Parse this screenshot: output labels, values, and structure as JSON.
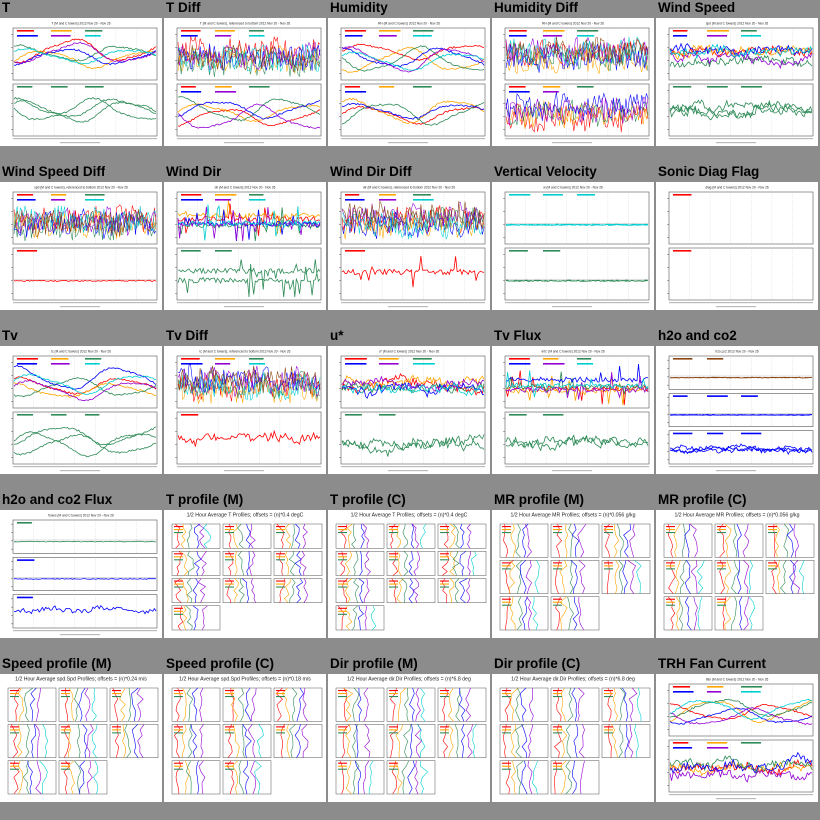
{
  "page": {
    "background": "#8c8c8c"
  },
  "series_colors": [
    "#ff0000",
    "#ffa500",
    "#2e8b57",
    "#0000ff",
    "#9400d3",
    "#00ced1",
    "#8b4513",
    "#7f7f00"
  ],
  "tiles": [
    {
      "title": "T",
      "kind": "ts",
      "head": "T (M and C towers) 2012 Nov 20 - Nov 26",
      "panels": [
        {
          "n": 6,
          "style": "smooth"
        },
        {
          "n": 3,
          "style": "smooth",
          "color": "#2e8b57"
        }
      ]
    },
    {
      "title": "T Diff",
      "kind": "ts",
      "head": "T (M and C towers), referenced to bottom 2012 Nov 20 - Nov 26",
      "panels": [
        {
          "n": 7,
          "style": "dense"
        },
        {
          "n": 5,
          "style": "smooth"
        }
      ]
    },
    {
      "title": "Humidity",
      "kind": "ts",
      "head": "RH (M and C towers) 2012 Nov 20 - Nov 26",
      "panels": [
        {
          "n": 6,
          "style": "smooth"
        },
        {
          "n": 4,
          "style": "smooth"
        }
      ]
    },
    {
      "title": "Humidity Diff",
      "kind": "ts",
      "head": "RH (M and C towers) 2012 Nov 20 - Nov 26",
      "panels": [
        {
          "n": 7,
          "style": "dense"
        },
        {
          "n": 5,
          "style": "dense"
        }
      ]
    },
    {
      "title": "Wind Speed",
      "kind": "ts",
      "head": "spd (M and C towers) 2012 Nov 20 - Nov 26",
      "panels": [
        {
          "n": 6,
          "style": "noisy"
        },
        {
          "n": 3,
          "style": "noisy",
          "color": "#2e8b57"
        }
      ]
    },
    {
      "title": "Wind Speed Diff",
      "kind": "ts",
      "head": "spd (M and C towers), referenced to bottom 2012 Nov 20 - Nov 26",
      "panels": [
        {
          "n": 7,
          "style": "dense"
        },
        {
          "n": 1,
          "style": "flat",
          "color": "#ff0000"
        }
      ]
    },
    {
      "title": "Wind Dir",
      "kind": "ts",
      "head": "dir (M and C towers) 2012 Nov 20 - Nov 26",
      "panels": [
        {
          "n": 6,
          "style": "spiky"
        },
        {
          "n": 2,
          "style": "spiky",
          "color": "#2e8b57"
        }
      ]
    },
    {
      "title": "Wind Dir Diff",
      "kind": "ts",
      "head": "dir (M and C towers), referenced to bottom 2012 Nov 20 - Nov 26",
      "panels": [
        {
          "n": 7,
          "style": "dense"
        },
        {
          "n": 1,
          "style": "spiky",
          "color": "#ff0000"
        }
      ]
    },
    {
      "title": "Vertical Velocity",
      "kind": "ts",
      "head": "w (M and C towers) 2012 Nov 20 - Nov 26",
      "panels": [
        {
          "n": 3,
          "style": "flat",
          "color": "#00ced1"
        },
        {
          "n": 2,
          "style": "flat",
          "color": "#2e8b57"
        }
      ]
    },
    {
      "title": "Sonic Diag Flag",
      "kind": "ts",
      "head": "diag (M and C towers) 2012 Nov 20 - Nov 26",
      "panels": [
        {
          "n": 0,
          "style": "flat"
        },
        {
          "n": 0,
          "style": "flat"
        }
      ]
    },
    {
      "title": "Tv",
      "kind": "ts",
      "head": "tc (M and C towers) 2012 Nov 20 - Nov 26",
      "panels": [
        {
          "n": 6,
          "style": "smooth"
        },
        {
          "n": 3,
          "style": "smooth",
          "color": "#2e8b57"
        }
      ]
    },
    {
      "title": "Tv Diff",
      "kind": "ts",
      "head": "tc (M and C towers), referenced to bottom 2012 Nov 20 - Nov 26",
      "panels": [
        {
          "n": 7,
          "style": "dense"
        },
        {
          "n": 1,
          "style": "noisy",
          "color": "#ff0000"
        }
      ]
    },
    {
      "title": "u*",
      "kind": "ts",
      "head": "u* (M and C towers) 2012 Nov 20 - Nov 26",
      "panels": [
        {
          "n": 6,
          "style": "noisy"
        },
        {
          "n": 2,
          "style": "noisy",
          "color": "#2e8b57"
        }
      ]
    },
    {
      "title": "Tv Flux",
      "kind": "ts",
      "head": "w'tc' (M and C towers) 2012 Nov 20 - Nov 26",
      "panels": [
        {
          "n": 6,
          "style": "spiky"
        },
        {
          "n": 2,
          "style": "noisy",
          "color": "#2e8b57"
        }
      ]
    },
    {
      "title": "h2o and co2",
      "kind": "ts3",
      "head": "h2o,co2 2012 Nov 20 - Nov 26",
      "panels": [
        {
          "n": 2,
          "style": "flat",
          "color": "#8b4513"
        },
        {
          "n": 3,
          "style": "flat",
          "color": "#0000ff"
        },
        {
          "n": 3,
          "style": "noisy",
          "color": "#0000ff"
        }
      ]
    },
    {
      "title": "h2o and co2 Flux",
      "kind": "ts3",
      "head": "fluxes (M and C towers) 2012 Nov 20 - Nov 26",
      "panels": [
        {
          "n": 1,
          "style": "flat",
          "color": "#2e8b57"
        },
        {
          "n": 1,
          "style": "flat",
          "color": "#0000ff"
        },
        {
          "n": 1,
          "style": "noisy",
          "color": "#0000ff"
        }
      ]
    },
    {
      "title": "T profile (M)",
      "kind": "prof",
      "head": "1/2 Hour Average T Profiles; offsets = (n)*0.4 degC",
      "rows": 4
    },
    {
      "title": "T profile (C)",
      "kind": "prof",
      "head": "1/2 Hour Average T Profiles; offsets = (n)*0.4 degC",
      "rows": 4
    },
    {
      "title": "MR profile (M)",
      "kind": "prof",
      "head": "1/2 Hour Average MR Profiles; offsets = (n)*0.056 g/kg",
      "rows": 3
    },
    {
      "title": "MR profile (C)",
      "kind": "prof",
      "head": "1/2 Hour Average MR Profiles; offsets = (n)*0.056 g/kg",
      "rows": 3
    },
    {
      "title": "Speed profile (M)",
      "kind": "prof",
      "head": "1/2 Hour Average spd.Spd Profiles; offsets = (n)*0.24 m/s",
      "rows": 3
    },
    {
      "title": "Speed profile (C)",
      "kind": "prof",
      "head": "1/2 Hour Average spd.Spd Profiles; offsets = (n)*0.18 m/s",
      "rows": 3
    },
    {
      "title": "Dir profile (M)",
      "kind": "prof",
      "head": "1/2 Hour Average dir.Dir Profiles; offsets = (n)*6.8 deg",
      "rows": 3
    },
    {
      "title": "Dir profile (C)",
      "kind": "prof",
      "head": "1/2 Hour Average dir.Dir Profiles; offsets = (n)*6.8 deg",
      "rows": 3
    },
    {
      "title": "TRH Fan Current",
      "kind": "ts",
      "head": "Ifan (M and C towers) 2012 Nov 20 - Nov 26",
      "panels": [
        {
          "n": 6,
          "style": "smooth"
        },
        {
          "n": 5,
          "style": "noisy"
        }
      ]
    }
  ]
}
